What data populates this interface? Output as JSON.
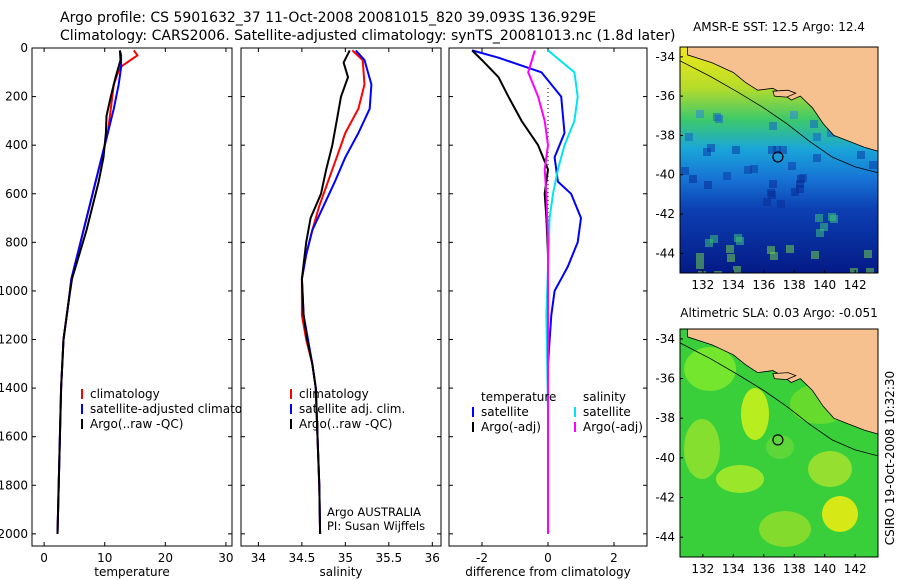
{
  "header": {
    "title_line1": "Argo profile: CS 5901632_37 11-Oct-2008 20081015_820 39.093S 136.929E",
    "title_line2": "Climatology: CARS2006. Satellite-adjusted climatology: synTS_20081013.nc (1.8d later)"
  },
  "side_label": "CSIRO 19-Oct-2008 10:32:30",
  "colors": {
    "red": "#ff0000",
    "blue": "#0000ff",
    "black": "#000000",
    "magenta": "#ff00ff",
    "cyan": "#00e5ee",
    "land": "#f6c08f"
  },
  "chart_data": [
    {
      "type": "line",
      "id": "temperature",
      "xlabel": "temperature",
      "ylabel": "",
      "xlim": [
        -2,
        31
      ],
      "ylim": [
        2050,
        0
      ],
      "xticks": [
        "0",
        "10",
        "20",
        "30"
      ],
      "yticks": [
        "0",
        "200",
        "400",
        "600",
        "800",
        "1000",
        "1200",
        "1400",
        "1600",
        "1800",
        "2000"
      ],
      "legend": [
        "climatology",
        "satellite-adjusted climatology",
        "Argo(..raw -QC)"
      ],
      "series": [
        {
          "name": "climatology",
          "color": "#ff0000",
          "x": [
            14.8,
            15.4,
            12.5,
            11.5,
            11.0,
            10.5,
            9.5,
            8.5,
            7.5,
            6.5,
            5.5,
            4.5,
            4.0,
            3.2,
            2.8,
            2.6,
            2.4,
            2.3,
            2.2
          ],
          "y": [
            10,
            30,
            80,
            150,
            250,
            350,
            450,
            550,
            650,
            750,
            850,
            950,
            1050,
            1200,
            1400,
            1600,
            1800,
            1900,
            2000
          ]
        },
        {
          "name": "satellite-adjusted climatology",
          "color": "#0000ff",
          "x": [
            12.5,
            12.7,
            12.7,
            12.3,
            11.5,
            10.5,
            9.5,
            8.5,
            7.5,
            6.5,
            5.5,
            4.5,
            4.0,
            3.2,
            2.8,
            2.6,
            2.4,
            2.3,
            2.2
          ],
          "y": [
            10,
            30,
            80,
            150,
            250,
            350,
            450,
            550,
            650,
            750,
            850,
            950,
            1050,
            1200,
            1400,
            1600,
            1800,
            1900,
            2000
          ]
        },
        {
          "name": "Argo(..raw -QC)",
          "color": "#000000",
          "x": [
            12.5,
            12.6,
            11.8,
            11.0,
            10.3,
            10.2,
            9.8,
            9.0,
            8.0,
            7.0,
            5.8,
            4.6,
            4.0,
            3.2,
            2.8,
            2.6,
            2.4,
            2.3,
            2.2
          ],
          "y": [
            10,
            50,
            120,
            200,
            280,
            350,
            450,
            550,
            650,
            750,
            850,
            950,
            1050,
            1200,
            1400,
            1600,
            1800,
            1900,
            2000
          ]
        }
      ]
    },
    {
      "type": "line",
      "id": "salinity",
      "xlabel": "salinity",
      "ylabel": "",
      "xlim": [
        33.8,
        36.1
      ],
      "ylim": [
        2050,
        0
      ],
      "xticks": [
        "34",
        "34.5",
        "35",
        "35.5",
        "36"
      ],
      "legend": [
        "climatology",
        "satellite adj. clim.",
        "Argo(..raw -QC)"
      ],
      "annotation": [
        "Argo AUSTRALIA",
        "PI: Susan Wijffels"
      ],
      "series": [
        {
          "name": "climatology",
          "color": "#ff0000",
          "x": [
            35.08,
            35.2,
            35.22,
            35.15,
            35.0,
            34.9,
            34.8,
            34.7,
            34.62,
            34.55,
            34.5,
            34.5,
            34.55,
            34.62,
            34.66,
            34.68,
            34.7,
            34.71
          ],
          "y": [
            10,
            50,
            150,
            250,
            350,
            450,
            550,
            650,
            750,
            850,
            950,
            1100,
            1200,
            1300,
            1400,
            1600,
            1800,
            2000
          ]
        },
        {
          "name": "satellite adj. clim.",
          "color": "#0000ff",
          "x": [
            35.12,
            35.22,
            35.3,
            35.28,
            35.15,
            35.0,
            34.88,
            34.75,
            34.62,
            34.55,
            34.5,
            34.52,
            34.57,
            34.62,
            34.66,
            34.68,
            34.7,
            34.71
          ],
          "y": [
            10,
            50,
            150,
            250,
            350,
            450,
            550,
            650,
            750,
            850,
            950,
            1100,
            1200,
            1300,
            1400,
            1600,
            1800,
            2000
          ]
        },
        {
          "name": "Argo(..raw -QC)",
          "color": "#000000",
          "x": [
            35.05,
            34.98,
            35.03,
            34.95,
            34.9,
            34.85,
            34.78,
            34.72,
            34.6,
            34.55,
            34.5,
            34.52,
            34.56,
            34.62,
            34.66,
            34.68,
            34.7,
            34.71
          ],
          "y": [
            10,
            60,
            120,
            200,
            300,
            400,
            500,
            600,
            700,
            800,
            950,
            1100,
            1200,
            1300,
            1400,
            1600,
            1800,
            2000
          ]
        }
      ]
    },
    {
      "type": "line",
      "id": "difference",
      "xlabel": "difference from climatology",
      "ylabel": "",
      "xlim": [
        -3,
        3
      ],
      "ylim": [
        2050,
        0
      ],
      "xticks": [
        "-2",
        "0",
        "2"
      ],
      "legend_temperature": {
        "title": "temperature",
        "items": [
          "satellite",
          "Argo(-adj)"
        ]
      },
      "legend_salinity": {
        "title": "salinity",
        "items": [
          "satellite",
          "Argo(-adj)"
        ]
      },
      "series": [
        {
          "name": "temperature satellite",
          "color": "#0000ff",
          "x": [
            -2.3,
            -1.5,
            -0.2,
            0.4,
            0.5,
            0.2,
            0.3,
            0.7,
            1.0,
            0.9,
            0.6,
            0.4,
            0.2,
            0.1,
            0.0,
            0.0,
            0.0
          ],
          "y": [
            10,
            40,
            100,
            200,
            350,
            450,
            550,
            600,
            700,
            800,
            900,
            950,
            1000,
            1100,
            1300,
            1600,
            2000
          ]
        },
        {
          "name": "temperature Argo(-adj)",
          "color": "#000000",
          "x": [
            -2.3,
            -2.0,
            -1.5,
            -1.2,
            -0.8,
            -0.3,
            0.0,
            -0.1,
            -0.05,
            0.0,
            0.0,
            0.0,
            0.0
          ],
          "y": [
            10,
            50,
            120,
            200,
            300,
            400,
            500,
            600,
            700,
            850,
            1000,
            1500,
            2000
          ]
        },
        {
          "name": "salinity satellite",
          "color": "#00e5ee",
          "x": [
            0.0,
            0.8,
            0.9,
            0.8,
            0.5,
            0.3,
            0.15,
            0.05,
            0.0,
            -0.05,
            0.0,
            0.0
          ],
          "y": [
            10,
            100,
            200,
            300,
            400,
            500,
            600,
            700,
            900,
            1100,
            1500,
            2000
          ]
        },
        {
          "name": "salinity Argo(-adj)",
          "color": "#ff00ff",
          "x": [
            -0.4,
            -0.6,
            -0.3,
            -0.1,
            0.0,
            -0.1,
            -0.05,
            0.0,
            0.0
          ],
          "y": [
            10,
            100,
            200,
            300,
            400,
            500,
            600,
            800,
            2000
          ]
        }
      ]
    },
    {
      "type": "heatmap",
      "id": "sst_map",
      "title": "AMSR-E SST: 12.5 Argo: 12.4",
      "xlim": [
        130.5,
        143.5
      ],
      "ylim": [
        -45,
        -33.5
      ],
      "xticks": [
        "132",
        "134",
        "136",
        "138",
        "140",
        "142"
      ],
      "yticks": [
        "-34",
        "-36",
        "-38",
        "-40",
        "-42",
        "-44"
      ],
      "marker": {
        "lon": 136.929,
        "lat": -39.093
      }
    },
    {
      "type": "heatmap",
      "id": "sla_map",
      "title": "Altimetric SLA: 0.03 Argo: -0.051",
      "xlim": [
        130.5,
        143.5
      ],
      "ylim": [
        -45,
        -33.5
      ],
      "xticks": [
        "132",
        "134",
        "136",
        "138",
        "140",
        "142"
      ],
      "yticks": [
        "-34",
        "-36",
        "-38",
        "-40",
        "-42",
        "-44"
      ],
      "marker": {
        "lon": 136.929,
        "lat": -39.093
      }
    }
  ]
}
